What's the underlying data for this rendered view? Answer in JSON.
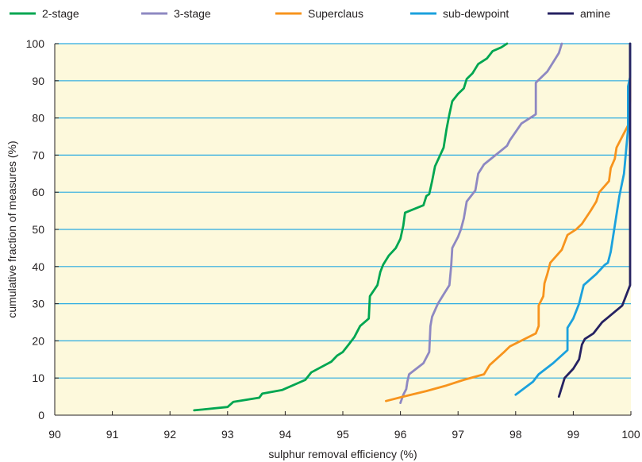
{
  "chart_data": {
    "type": "line",
    "title": "",
    "xlabel": "sulphur removal efficiency (%)",
    "ylabel": "cumulative fraction of measures (%)",
    "xlim": [
      90,
      100
    ],
    "ylim": [
      0,
      100
    ],
    "xticks": [
      90,
      91,
      92,
      93,
      94,
      95,
      96,
      97,
      98,
      99,
      100
    ],
    "yticks": [
      0,
      10,
      20,
      30,
      40,
      50,
      60,
      70,
      80,
      90,
      100
    ],
    "grid": "horizontal",
    "legend_position": "top",
    "plot_background": "#fdf9dc",
    "gridline_color": "#29abe2",
    "series": [
      {
        "name": "2-stage",
        "color": "#00a651",
        "points": [
          [
            92.42,
            1.3
          ],
          [
            93.0,
            2.2
          ],
          [
            93.1,
            3.6
          ],
          [
            93.55,
            4.7
          ],
          [
            93.6,
            5.8
          ],
          [
            93.95,
            6.8
          ],
          [
            94.35,
            9.5
          ],
          [
            94.45,
            11.5
          ],
          [
            94.8,
            14.4
          ],
          [
            94.9,
            16.0
          ],
          [
            95.0,
            17.0
          ],
          [
            95.1,
            19.0
          ],
          [
            95.2,
            21.0
          ],
          [
            95.3,
            24.0
          ],
          [
            95.45,
            26.0
          ],
          [
            95.47,
            32.0
          ],
          [
            95.6,
            35.0
          ],
          [
            95.65,
            38.5
          ],
          [
            95.7,
            40.5
          ],
          [
            95.8,
            43.0
          ],
          [
            95.92,
            45.0
          ],
          [
            96.0,
            47.5
          ],
          [
            96.05,
            51.0
          ],
          [
            96.08,
            54.5
          ],
          [
            96.4,
            56.5
          ],
          [
            96.45,
            59.0
          ],
          [
            96.5,
            59.5
          ],
          [
            96.55,
            63.0
          ],
          [
            96.6,
            67.0
          ],
          [
            96.75,
            72.0
          ],
          [
            96.8,
            77.0
          ],
          [
            96.85,
            81.0
          ],
          [
            96.9,
            84.5
          ],
          [
            97.0,
            86.5
          ],
          [
            97.1,
            88.0
          ],
          [
            97.15,
            90.5
          ],
          [
            97.25,
            92.0
          ],
          [
            97.35,
            94.5
          ],
          [
            97.5,
            96.0
          ],
          [
            97.6,
            98.0
          ],
          [
            97.75,
            99.0
          ],
          [
            97.85,
            100.0
          ]
        ]
      },
      {
        "name": "3-stage",
        "color": "#8e88c2",
        "points": [
          [
            96.0,
            3.3
          ],
          [
            96.05,
            5.5
          ],
          [
            96.1,
            7.0
          ],
          [
            96.12,
            9.0
          ],
          [
            96.15,
            11.0
          ],
          [
            96.4,
            14.0
          ],
          [
            96.5,
            17.0
          ],
          [
            96.52,
            24.0
          ],
          [
            96.55,
            26.5
          ],
          [
            96.65,
            30.0
          ],
          [
            96.75,
            32.5
          ],
          [
            96.85,
            35.0
          ],
          [
            96.88,
            40.0
          ],
          [
            96.9,
            45.0
          ],
          [
            97.0,
            48.0
          ],
          [
            97.05,
            50.0
          ],
          [
            97.1,
            53.0
          ],
          [
            97.15,
            57.5
          ],
          [
            97.3,
            60.5
          ],
          [
            97.35,
            65.0
          ],
          [
            97.45,
            67.5
          ],
          [
            97.85,
            72.5
          ],
          [
            97.9,
            74.0
          ],
          [
            98.1,
            78.5
          ],
          [
            98.3,
            80.5
          ],
          [
            98.35,
            81.0
          ],
          [
            98.35,
            89.5
          ],
          [
            98.55,
            92.5
          ],
          [
            98.75,
            97.5
          ],
          [
            98.8,
            100.0
          ]
        ]
      },
      {
        "name": "Superclaus",
        "color": "#f7941d",
        "points": [
          [
            95.75,
            3.8
          ],
          [
            96.05,
            5.0
          ],
          [
            96.45,
            6.5
          ],
          [
            96.8,
            8.0
          ],
          [
            97.1,
            9.5
          ],
          [
            97.45,
            11.0
          ],
          [
            97.55,
            13.5
          ],
          [
            97.8,
            17.0
          ],
          [
            97.9,
            18.5
          ],
          [
            98.35,
            22.0
          ],
          [
            98.4,
            24.0
          ],
          [
            98.4,
            29.5
          ],
          [
            98.48,
            32.0
          ],
          [
            98.5,
            35.5
          ],
          [
            98.55,
            38.0
          ],
          [
            98.6,
            41.0
          ],
          [
            98.8,
            44.5
          ],
          [
            98.9,
            48.5
          ],
          [
            99.05,
            50.0
          ],
          [
            99.15,
            51.5
          ],
          [
            99.3,
            55.0
          ],
          [
            99.4,
            57.5
          ],
          [
            99.45,
            60.0
          ],
          [
            99.62,
            63.0
          ],
          [
            99.65,
            66.5
          ],
          [
            99.72,
            69.0
          ],
          [
            99.75,
            72.0
          ],
          [
            99.85,
            75.0
          ],
          [
            99.95,
            78.0
          ],
          [
            99.97,
            81.0
          ],
          [
            100.0,
            85.0
          ],
          [
            100.0,
            90.0
          ],
          [
            100.05,
            97.5
          ],
          [
            100.1,
            100.0
          ]
        ]
      },
      {
        "name": "sub-dewpoint",
        "color": "#1ba1dd",
        "points": [
          [
            98.0,
            5.5
          ],
          [
            98.3,
            9.0
          ],
          [
            98.4,
            11.0
          ],
          [
            98.65,
            14.0
          ],
          [
            98.9,
            17.5
          ],
          [
            98.9,
            23.5
          ],
          [
            99.0,
            26.0
          ],
          [
            99.1,
            30.0
          ],
          [
            99.18,
            35.0
          ],
          [
            99.4,
            38.0
          ],
          [
            99.55,
            40.5
          ],
          [
            99.6,
            41.0
          ],
          [
            99.65,
            44.0
          ],
          [
            99.8,
            59.0
          ],
          [
            99.88,
            65.0
          ],
          [
            99.95,
            77.0
          ],
          [
            99.95,
            88.5
          ],
          [
            100.05,
            91.0
          ],
          [
            100.15,
            94.0
          ],
          [
            100.15,
            100.0
          ]
        ]
      },
      {
        "name": "amine",
        "color": "#262262",
        "points": [
          [
            98.75,
            5.0
          ],
          [
            98.85,
            10.0
          ],
          [
            99.0,
            12.5
          ],
          [
            99.1,
            15.0
          ],
          [
            99.15,
            19.0
          ],
          [
            99.2,
            20.5
          ],
          [
            99.35,
            22.0
          ],
          [
            99.5,
            25.0
          ],
          [
            99.85,
            29.5
          ],
          [
            100.1,
            35.0
          ],
          [
            100.1,
            50.0
          ],
          [
            100.1,
            80.0
          ],
          [
            100.12,
            95.0
          ],
          [
            100.15,
            100.0
          ]
        ]
      }
    ]
  }
}
